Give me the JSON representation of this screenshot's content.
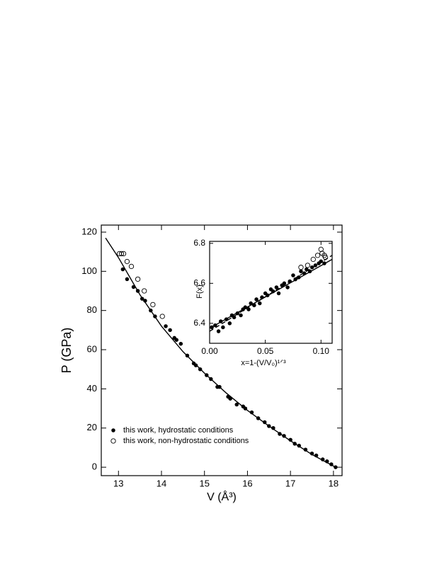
{
  "chart_data": [
    {
      "type": "scatter",
      "ylabel": "P (GPa)",
      "xlabel": "V (Å³)",
      "xlim": [
        12.6,
        18.2
      ],
      "ylim": [
        -4.3,
        123.6
      ],
      "xticks": [
        13,
        14,
        15,
        16,
        17,
        18
      ],
      "yticks": [
        0,
        20,
        40,
        60,
        80,
        100,
        120
      ],
      "series": [
        {
          "style": "line",
          "color": "#000000",
          "x": [
            12.7,
            13,
            13.5,
            14,
            14.5,
            15,
            15.5,
            16,
            16.5,
            17,
            17.5,
            18.05
          ],
          "values": [
            117,
            107,
            88,
            72,
            59,
            48,
            38,
            29,
            21,
            13.5,
            6.5,
            0
          ]
        },
        {
          "style": "filled",
          "color": "#000000",
          "name": "this work, hydrostatic conditions",
          "x": [
            13.1,
            13.2,
            13.35,
            13.45,
            13.55,
            13.62,
            13.75,
            13.85,
            14.1,
            14.2,
            14.3,
            14.35,
            14.45,
            14.6,
            14.75,
            14.8,
            14.9,
            15.05,
            15.15,
            15.3,
            15.35,
            15.55,
            15.6,
            15.75,
            15.9,
            15.95,
            16.1,
            16.25,
            16.4,
            16.5,
            16.6,
            16.75,
            16.85,
            17,
            17.1,
            17.2,
            17.35,
            17.5,
            17.6,
            17.75,
            17.85,
            17.95,
            18.05
          ],
          "values": [
            101,
            96,
            92,
            90,
            86,
            85,
            80,
            77,
            72,
            70,
            66,
            65,
            63,
            57,
            53,
            52,
            50,
            47,
            45,
            41,
            41,
            36,
            35,
            32,
            31,
            30,
            28,
            25,
            23,
            21,
            20,
            17,
            16,
            14,
            12,
            11,
            9,
            7,
            6,
            4,
            3,
            1.5,
            0
          ]
        },
        {
          "style": "open",
          "color": "#000000",
          "name": "this work, non-hydrostatic conditions",
          "x": [
            13.02,
            13.07,
            13.12,
            13.2,
            13.3,
            13.45,
            13.6,
            13.8,
            14.02
          ],
          "values": [
            109,
            109,
            109,
            105,
            102.5,
            96,
            90,
            83,
            77
          ]
        }
      ]
    },
    {
      "type": "scatter",
      "ylabel": "F(x)",
      "xlabel": "x=1-(V/V₀)¹ᐟ³",
      "xlim": [
        0,
        0.11
      ],
      "ylim": [
        6.3,
        6.81
      ],
      "xticks": [
        {
          "value": 0,
          "label": "0.00"
        },
        0.05,
        {
          "value": 0.1,
          "label": "0.10"
        }
      ],
      "yticks": [
        6.4,
        6.6,
        6.8
      ],
      "series": [
        {
          "style": "filled",
          "color": "#000000",
          "x": [
            0.002,
            0.005,
            0.008,
            0.01,
            0.012,
            0.015,
            0.018,
            0.02,
            0.022,
            0.025,
            0.028,
            0.03,
            0.032,
            0.035,
            0.037,
            0.04,
            0.042,
            0.045,
            0.047,
            0.05,
            0.052,
            0.055,
            0.057,
            0.06,
            0.062,
            0.065,
            0.067,
            0.07,
            0.072,
            0.075,
            0.077,
            0.08,
            0.082,
            0.085,
            0.087,
            0.09,
            0.092,
            0.095,
            0.098,
            0.1,
            0.103
          ],
          "values": [
            6.38,
            6.39,
            6.36,
            6.41,
            6.38,
            6.42,
            6.4,
            6.44,
            6.43,
            6.45,
            6.44,
            6.47,
            6.48,
            6.47,
            6.5,
            6.49,
            6.52,
            6.5,
            6.53,
            6.55,
            6.54,
            6.57,
            6.56,
            6.58,
            6.55,
            6.59,
            6.6,
            6.58,
            6.61,
            6.64,
            6.62,
            6.63,
            6.66,
            6.65,
            6.67,
            6.66,
            6.68,
            6.69,
            6.7,
            6.71,
            6.7
          ]
        },
        {
          "style": "open",
          "color": "#000000",
          "x": [
            0.082,
            0.088,
            0.093,
            0.097,
            0.1,
            0.101,
            0.103,
            0.104
          ],
          "values": [
            6.68,
            6.69,
            6.72,
            6.74,
            6.77,
            6.75,
            6.74,
            6.73
          ]
        },
        {
          "style": "line",
          "color": "#000000",
          "x": [
            0,
            0.11
          ],
          "values": [
            6.375,
            6.72
          ]
        },
        {
          "style": "dashed",
          "color": "#000000",
          "x": [
            0,
            0.11
          ],
          "values": [
            6.36,
            6.74
          ]
        }
      ]
    }
  ]
}
